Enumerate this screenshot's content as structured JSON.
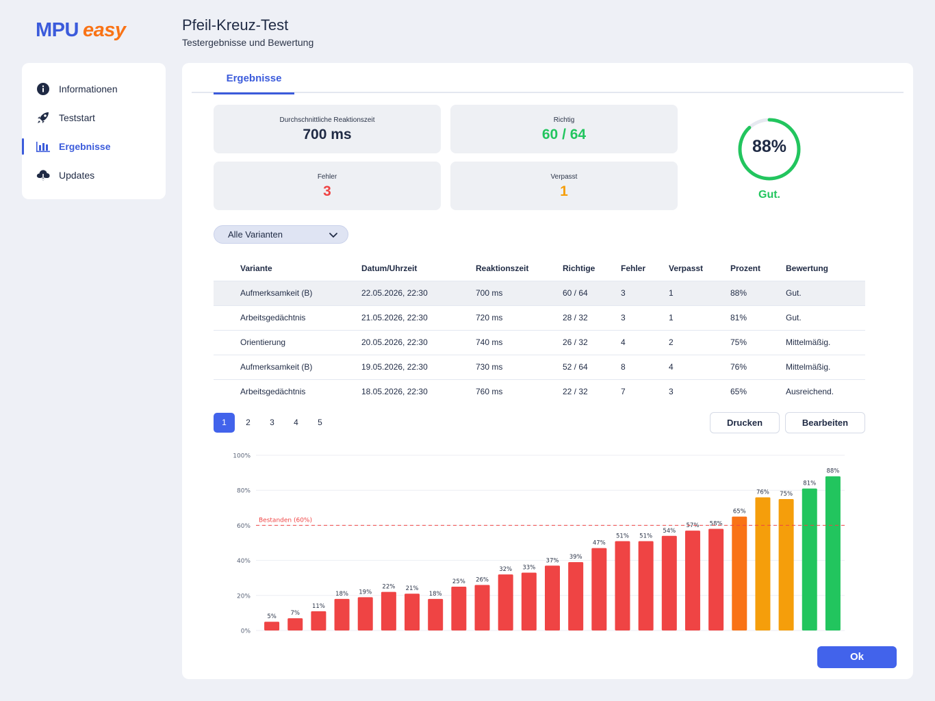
{
  "logo": {
    "primary": "MPU",
    "secondary": "easy"
  },
  "header": {
    "title": "Pfeil-Kreuz-Test",
    "subtitle": "Testergebnisse und Bewertung"
  },
  "sidebar": {
    "items": [
      {
        "label": "Informationen",
        "icon": "info-icon",
        "active": false
      },
      {
        "label": "Teststart",
        "icon": "rocket-icon",
        "active": false
      },
      {
        "label": "Ergebnisse",
        "icon": "bar-chart-icon",
        "active": true
      },
      {
        "label": "Updates",
        "icon": "cloud-download-icon",
        "active": false
      }
    ]
  },
  "tabs": {
    "active_label": "Ergebnisse"
  },
  "stats": {
    "reaction": {
      "label": "Durchschnittliche Reaktionszeit",
      "value": "700 ms",
      "color": "#1f2a44"
    },
    "correct": {
      "label": "Richtig",
      "value": "60 / 64",
      "color": "#22c55e"
    },
    "errors": {
      "label": "Fehler",
      "value": "3",
      "color": "#ef4444"
    },
    "missed": {
      "label": "Verpasst",
      "value": "1",
      "color": "#f59e0b"
    }
  },
  "score": {
    "value": "88%",
    "fraction": 0.88,
    "label": "Gut.",
    "color": "#22c55e"
  },
  "filter": {
    "selected": "Alle Varianten"
  },
  "table": {
    "headers": [
      "Variante",
      "Datum/Uhrzeit",
      "Reaktionszeit",
      "Richtige",
      "Fehler",
      "Verpasst",
      "Prozent",
      "Bewertung"
    ],
    "rows": [
      [
        "Aufmerksamkeit (B)",
        "22.05.2026, 22:30",
        "700 ms",
        "60 / 64",
        "3",
        "1",
        "88%",
        "Gut."
      ],
      [
        "Arbeitsgedächtnis",
        "21.05.2026, 22:30",
        "720 ms",
        "28 / 32",
        "3",
        "1",
        "81%",
        "Gut."
      ],
      [
        "Orientierung",
        "20.05.2026, 22:30",
        "740 ms",
        "26 / 32",
        "4",
        "2",
        "75%",
        "Mittelmäßig."
      ],
      [
        "Aufmerksamkeit (B)",
        "19.05.2026, 22:30",
        "730 ms",
        "52 / 64",
        "8",
        "4",
        "76%",
        "Mittelmäßig."
      ],
      [
        "Arbeitsgedächtnis",
        "18.05.2026, 22:30",
        "760 ms",
        "22 / 32",
        "7",
        "3",
        "65%",
        "Ausreichend."
      ]
    ]
  },
  "pagination": {
    "pages": [
      "1",
      "2",
      "3",
      "4",
      "5"
    ],
    "current": "1"
  },
  "buttons": {
    "print": "Drucken",
    "edit": "Bearbeiten",
    "ok": "Ok"
  },
  "chart_data": {
    "type": "bar",
    "values": [
      5,
      7,
      11,
      18,
      19,
      22,
      21,
      18,
      25,
      26,
      32,
      33,
      37,
      39,
      47,
      51,
      51,
      54,
      57,
      58,
      65,
      76,
      75,
      81,
      88
    ],
    "labels": [
      "5%",
      "7%",
      "11%",
      "18%",
      "19%",
      "22%",
      "21%",
      "18%",
      "25%",
      "26%",
      "32%",
      "33%",
      "37%",
      "39%",
      "47%",
      "51%",
      "51%",
      "54%",
      "57%",
      "58%",
      "65%",
      "76%",
      "75%",
      "81%",
      "88%"
    ],
    "yticks": [
      "0%",
      "20%",
      "40%",
      "60%",
      "80%",
      "100%"
    ],
    "ylim": [
      0,
      100
    ],
    "threshold": {
      "value": 60,
      "label": "Bestanden (60%)",
      "color": "#ef4444"
    },
    "colors": {
      "fail": "#ef4444",
      "medium": "#f97316",
      "okay": "#f59e0b",
      "good": "#22c55e"
    },
    "bar_colors": [
      "#ef4444",
      "#ef4444",
      "#ef4444",
      "#ef4444",
      "#ef4444",
      "#ef4444",
      "#ef4444",
      "#ef4444",
      "#ef4444",
      "#ef4444",
      "#ef4444",
      "#ef4444",
      "#ef4444",
      "#ef4444",
      "#ef4444",
      "#ef4444",
      "#ef4444",
      "#ef4444",
      "#ef4444",
      "#ef4444",
      "#f97316",
      "#f59e0b",
      "#f59e0b",
      "#22c55e",
      "#22c55e"
    ],
    "grid": true
  }
}
